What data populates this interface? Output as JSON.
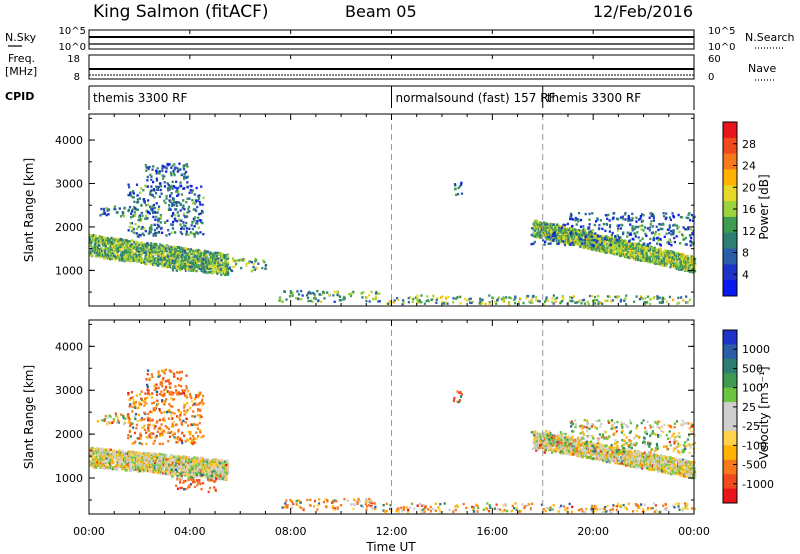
{
  "header": {
    "station": "King Salmon (fitACF)",
    "beam": "Beam 05",
    "date": "12/Feb/2016"
  },
  "summary": {
    "nsky_label": "N.Sky",
    "nsearch_label": "N.Search",
    "noise_ticks": [
      "10^5",
      "10^0"
    ],
    "freq_label_1": "Freq.",
    "freq_label_2": "[MHz]",
    "freq_ticks": [
      "18",
      "8"
    ],
    "nave_label": "Nave",
    "nave_ticks": [
      "60",
      "0"
    ],
    "cpid_label": "CPID",
    "cpid_segments": [
      {
        "label": "themis 3300 RF",
        "start_h": 0,
        "end_h": 12
      },
      {
        "label": "normalsound (fast) 157 RF",
        "start_h": 12,
        "end_h": 18
      },
      {
        "label": "themis 3300 RF",
        "start_h": 18,
        "end_h": 24
      }
    ]
  },
  "power_panel": {
    "ylabel": "Slant Range [km]",
    "cbar_label": "Power [dB]",
    "cbar_ticks": [
      "28",
      "24",
      "20",
      "16",
      "12",
      "8",
      "4"
    ],
    "cbar_colors": [
      "#e8161b",
      "#f14a1d",
      "#f6791e",
      "#ffb300",
      "#e8d82a",
      "#9bd23d",
      "#3f9a52",
      "#2d7f72",
      "#2c5ea8",
      "#1d32c9",
      "#0a18f0"
    ]
  },
  "velocity_panel": {
    "ylabel": "Slant Range [km]",
    "cbar_label": "Velocity [m s⁻¹]",
    "cbar_ticks": [
      "1000",
      "500",
      "100",
      "25",
      "-25",
      "-100",
      "-500",
      "-1000"
    ],
    "cbar_colors": [
      "#1d32c9",
      "#2c5ea8",
      "#2d7f72",
      "#3f9a52",
      "#6cc540",
      "#cfcfcf",
      "#cfcfcf",
      "#ffd24a",
      "#ffb300",
      "#f6791e",
      "#f14a1d",
      "#e8161b"
    ]
  },
  "xaxis": {
    "label": "Time UT",
    "ticks": [
      "00:00",
      "04:00",
      "08:00",
      "12:00",
      "16:00",
      "20:00",
      "00:00"
    ]
  },
  "chart_data": [
    {
      "type": "heatmap",
      "title": "Power",
      "xlabel": "Time UT",
      "ylabel": "Slant Range [km]",
      "xlim": [
        0,
        24
      ],
      "ylim": [
        180,
        4600
      ],
      "y_ticks": [
        1000,
        2000,
        3000,
        4000
      ],
      "color_label": "Power [dB]",
      "color_range": [
        0,
        32
      ],
      "scatter_regions": [
        {
          "t0": 0.3,
          "t1": 1.8,
          "r0": 2250,
          "r1": 2500,
          "value": 10
        },
        {
          "t0": 1.5,
          "t1": 4.5,
          "r0": 1800,
          "r1": 3000,
          "value": 9
        },
        {
          "t0": 2.2,
          "t1": 3.9,
          "r0": 2900,
          "r1": 3500,
          "value": 7
        },
        {
          "t0": 3.2,
          "t1": 7.0,
          "r0": 1000,
          "r1": 1300,
          "value": 13
        },
        {
          "t0": 7.5,
          "t1": 11.5,
          "r0": 300,
          "r1": 550,
          "value": 12
        },
        {
          "t0": 11.5,
          "t1": 24.0,
          "r0": 250,
          "r1": 450,
          "value": 14
        },
        {
          "t0": 14.4,
          "t1": 14.8,
          "r0": 2750,
          "r1": 3050,
          "value": 8
        },
        {
          "t0": 17.5,
          "t1": 24.0,
          "r0": 1600,
          "r1": 2100,
          "value": 9
        },
        {
          "t0": 19.0,
          "t1": 24.0,
          "r0": 2150,
          "r1": 2350,
          "value": 7
        }
      ],
      "bands": [
        {
          "t0": 0.0,
          "t1": 5.5,
          "r_start": 1600,
          "r_end": 1150,
          "width": 500,
          "value": 14
        },
        {
          "t0": 17.6,
          "t1": 24.0,
          "r_start": 2000,
          "r_end": 1150,
          "width": 380,
          "value": 15
        }
      ]
    },
    {
      "type": "heatmap",
      "title": "Velocity",
      "xlabel": "Time UT",
      "ylabel": "Slant Range [km]",
      "xlim": [
        0,
        24
      ],
      "ylim": [
        180,
        4600
      ],
      "y_ticks": [
        1000,
        2000,
        3000,
        4000
      ],
      "color_label": "Velocity [m s⁻¹]",
      "color_range": [
        -1000,
        1000
      ],
      "scatter_regions": [
        {
          "t0": 0.3,
          "t1": 1.8,
          "r0": 2250,
          "r1": 2500,
          "value": 10
        },
        {
          "t0": 1.5,
          "t1": 4.5,
          "r0": 1800,
          "r1": 3000,
          "value": -150
        },
        {
          "t0": 2.2,
          "t1": 3.9,
          "r0": 2900,
          "r1": 3500,
          "value": -200
        },
        {
          "t0": 3.2,
          "t1": 5.5,
          "r0": 1000,
          "r1": 1400,
          "value": 80
        },
        {
          "t0": 3.4,
          "t1": 5.0,
          "r0": 700,
          "r1": 1000,
          "value": -250
        },
        {
          "t0": 7.5,
          "t1": 11.5,
          "r0": 300,
          "r1": 550,
          "value": -100
        },
        {
          "t0": 11.5,
          "t1": 24.0,
          "r0": 250,
          "r1": 450,
          "value": -60
        },
        {
          "t0": 14.4,
          "t1": 14.8,
          "r0": 2750,
          "r1": 3050,
          "value": -300
        },
        {
          "t0": 17.5,
          "t1": 24.0,
          "r0": 1600,
          "r1": 2100,
          "value": 0
        },
        {
          "t0": 19.0,
          "t1": 24.0,
          "r0": 2150,
          "r1": 2350,
          "value": 0
        }
      ],
      "bands": [
        {
          "t0": 0.0,
          "t1": 5.5,
          "r_start": 1500,
          "r_end": 1200,
          "width": 450,
          "value": 0
        },
        {
          "t0": 17.6,
          "t1": 24.0,
          "r_start": 1900,
          "r_end": 1200,
          "width": 380,
          "value": 0
        }
      ]
    }
  ]
}
